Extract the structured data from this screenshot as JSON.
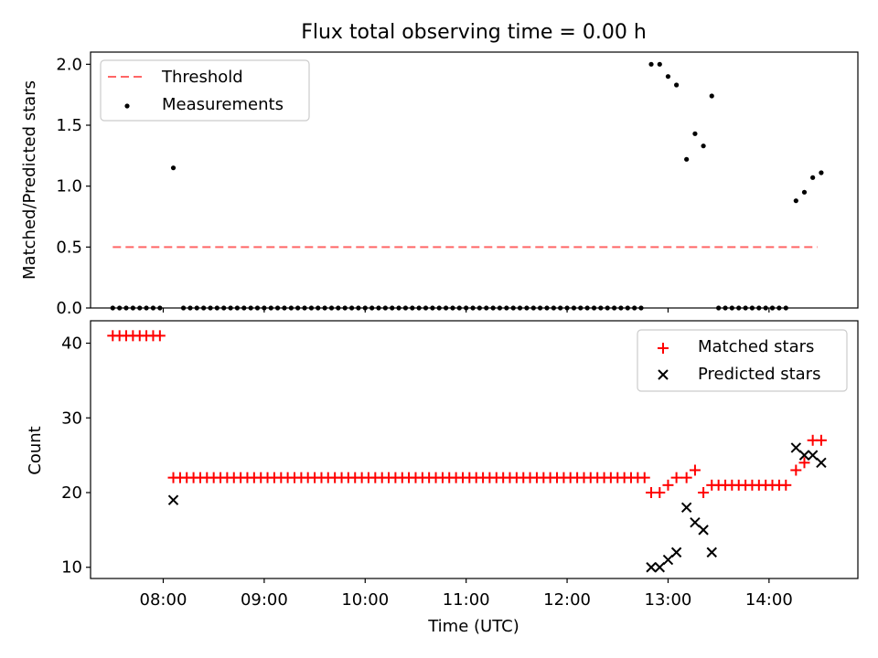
{
  "chart_data": [
    {
      "type": "scatter",
      "title": "Flux total observing time = 0.00 h",
      "xlabel": "",
      "ylabel": "Matched/Predicted stars",
      "xlim": [
        7.28,
        14.88
      ],
      "ylim": [
        0,
        2.1
      ],
      "yticks": [
        0,
        0.5,
        1,
        1.5,
        2
      ],
      "ytick_labels": [
        "0.0",
        "0.5",
        "1.0",
        "1.5",
        "2.0"
      ],
      "xticks": [
        8,
        9,
        10,
        11,
        12,
        13,
        14
      ],
      "legend": {
        "position": "upper-left",
        "entries": [
          "Threshold",
          "Measurements"
        ]
      },
      "threshold": {
        "name": "Threshold",
        "value": 0.5,
        "x_range": [
          7.5,
          14.48
        ],
        "color": "#ff6666",
        "style": "dashed"
      },
      "measurements": {
        "name": "Measurements",
        "color": "#000000",
        "x": [
          7.5,
          7.567,
          7.633,
          7.7,
          7.767,
          7.833,
          7.9,
          7.967,
          8.1,
          8.2,
          8.267,
          8.333,
          8.4,
          8.467,
          8.533,
          8.6,
          8.667,
          8.733,
          8.8,
          8.867,
          8.933,
          9,
          9.067,
          9.133,
          9.2,
          9.267,
          9.333,
          9.4,
          9.467,
          9.533,
          9.6,
          9.667,
          9.733,
          9.8,
          9.867,
          9.933,
          10,
          10.067,
          10.133,
          10.2,
          10.267,
          10.333,
          10.4,
          10.467,
          10.533,
          10.6,
          10.667,
          10.733,
          10.8,
          10.867,
          10.933,
          11,
          11.067,
          11.133,
          11.2,
          11.267,
          11.333,
          11.4,
          11.467,
          11.533,
          11.6,
          11.667,
          11.733,
          11.8,
          11.867,
          11.933,
          12,
          12.067,
          12.133,
          12.2,
          12.267,
          12.333,
          12.4,
          12.467,
          12.533,
          12.6,
          12.667,
          12.733,
          12.833,
          12.917,
          13,
          13.083,
          13.183,
          13.267,
          13.35,
          13.433,
          13.5,
          13.567,
          13.633,
          13.7,
          13.767,
          13.833,
          13.9,
          13.967,
          14.033,
          14.1,
          14.167,
          14.267,
          14.35,
          14.433,
          14.517
        ],
        "y": [
          0,
          0,
          0,
          0,
          0,
          0,
          0,
          0,
          1.15,
          0,
          0,
          0,
          0,
          0,
          0,
          0,
          0,
          0,
          0,
          0,
          0,
          0,
          0,
          0,
          0,
          0,
          0,
          0,
          0,
          0,
          0,
          0,
          0,
          0,
          0,
          0,
          0,
          0,
          0,
          0,
          0,
          0,
          0,
          0,
          0,
          0,
          0,
          0,
          0,
          0,
          0,
          0,
          0,
          0,
          0,
          0,
          0,
          0,
          0,
          0,
          0,
          0,
          0,
          0,
          0,
          0,
          0,
          0,
          0,
          0,
          0,
          0,
          0,
          0,
          0,
          0,
          0,
          0,
          2.0,
          2.0,
          1.9,
          1.83,
          1.22,
          1.43,
          1.33,
          1.74,
          0,
          0,
          0,
          0,
          0,
          0,
          0,
          0,
          0,
          0,
          0,
          0.88,
          0.95,
          1.07,
          1.11
        ]
      }
    },
    {
      "type": "scatter",
      "title": "",
      "xlabel": "Time (UTC)",
      "ylabel": "Count",
      "xlim": [
        7.28,
        14.88
      ],
      "ylim": [
        8.5,
        43
      ],
      "yticks": [
        10,
        20,
        30,
        40
      ],
      "ytick_labels": [
        "10",
        "20",
        "30",
        "40"
      ],
      "xticks": [
        8,
        9,
        10,
        11,
        12,
        13,
        14
      ],
      "xtick_labels": [
        "08:00",
        "09:00",
        "10:00",
        "11:00",
        "12:00",
        "13:00",
        "14:00"
      ],
      "legend": {
        "position": "upper-right",
        "entries": [
          "Matched stars",
          "Predicted stars"
        ]
      },
      "series": [
        {
          "name": "Matched stars",
          "marker": "plus",
          "color": "#ff0000",
          "x": [
            7.5,
            7.567,
            7.633,
            7.7,
            7.767,
            7.833,
            7.9,
            7.967,
            8.1,
            8.167,
            8.233,
            8.3,
            8.367,
            8.433,
            8.5,
            8.567,
            8.633,
            8.7,
            8.767,
            8.833,
            8.9,
            8.967,
            9.033,
            9.1,
            9.167,
            9.233,
            9.3,
            9.367,
            9.433,
            9.5,
            9.567,
            9.633,
            9.7,
            9.767,
            9.833,
            9.9,
            9.967,
            10.033,
            10.1,
            10.167,
            10.233,
            10.3,
            10.367,
            10.433,
            10.5,
            10.567,
            10.633,
            10.7,
            10.767,
            10.833,
            10.9,
            10.967,
            11.033,
            11.1,
            11.167,
            11.233,
            11.3,
            11.367,
            11.433,
            11.5,
            11.567,
            11.633,
            11.7,
            11.767,
            11.833,
            11.9,
            11.967,
            12.033,
            12.1,
            12.167,
            12.233,
            12.3,
            12.367,
            12.433,
            12.5,
            12.567,
            12.633,
            12.7,
            12.767,
            12.833,
            12.917,
            13,
            13.083,
            13.183,
            13.267,
            13.35,
            13.433,
            13.5,
            13.567,
            13.633,
            13.7,
            13.767,
            13.833,
            13.9,
            13.967,
            14.033,
            14.1,
            14.167,
            14.267,
            14.35,
            14.433,
            14.517
          ],
          "y": [
            41,
            41,
            41,
            41,
            41,
            41,
            41,
            41,
            22,
            22,
            22,
            22,
            22,
            22,
            22,
            22,
            22,
            22,
            22,
            22,
            22,
            22,
            22,
            22,
            22,
            22,
            22,
            22,
            22,
            22,
            22,
            22,
            22,
            22,
            22,
            22,
            22,
            22,
            22,
            22,
            22,
            22,
            22,
            22,
            22,
            22,
            22,
            22,
            22,
            22,
            22,
            22,
            22,
            22,
            22,
            22,
            22,
            22,
            22,
            22,
            22,
            22,
            22,
            22,
            22,
            22,
            22,
            22,
            22,
            22,
            22,
            22,
            22,
            22,
            22,
            22,
            22,
            22,
            22,
            20,
            20,
            21,
            22,
            22,
            23,
            20,
            21,
            21,
            21,
            21,
            21,
            21,
            21,
            21,
            21,
            21,
            21,
            21,
            23,
            24,
            27,
            27
          ]
        },
        {
          "name": "Predicted stars",
          "marker": "x",
          "color": "#000000",
          "x": [
            8.1,
            12.833,
            12.917,
            13,
            13.083,
            13.183,
            13.267,
            13.35,
            13.433,
            14.267,
            14.35,
            14.433,
            14.517
          ],
          "y": [
            19,
            10,
            10,
            11,
            12,
            18,
            16,
            15,
            12,
            26,
            25,
            25,
            24
          ]
        }
      ]
    }
  ]
}
